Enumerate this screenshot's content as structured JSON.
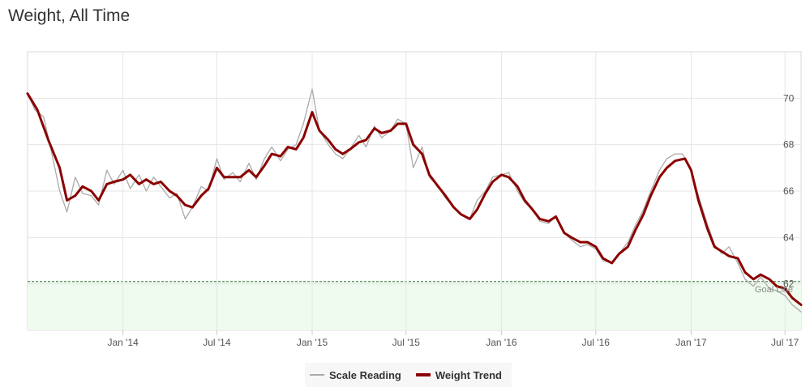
{
  "chart_data": {
    "type": "line",
    "title": "Weight, All Time",
    "xlabel": "",
    "ylabel": "",
    "x_range": [
      "2013-07-01",
      "2017-08-01"
    ],
    "ylim": [
      60.0,
      72.0
    ],
    "y_ticks": [
      62,
      64,
      66,
      68,
      70
    ],
    "x_ticks": [
      {
        "date": "2014-01-01",
        "label": "Jan '14"
      },
      {
        "date": "2014-07-01",
        "label": "Jul '14"
      },
      {
        "date": "2015-01-01",
        "label": "Jan '15"
      },
      {
        "date": "2015-07-01",
        "label": "Jul '15"
      },
      {
        "date": "2016-01-01",
        "label": "Jan '16"
      },
      {
        "date": "2016-07-01",
        "label": "Jul '16"
      },
      {
        "date": "2017-01-01",
        "label": "Jan '17"
      },
      {
        "date": "2017-07-01",
        "label": "Jul '17"
      }
    ],
    "goal": {
      "value": 62.1,
      "label": "Goal Line",
      "color": "#2e7d32",
      "fill": "#eefbee"
    },
    "grid": true,
    "legend_position": "bottom-center",
    "series": [
      {
        "name": "Scale Reading",
        "color": "#aaaaaa",
        "points": [
          [
            "2013-07-01",
            70.2
          ],
          [
            "2013-07-15",
            69.5
          ],
          [
            "2013-08-01",
            69.2
          ],
          [
            "2013-08-15",
            67.8
          ],
          [
            "2013-09-01",
            66.0
          ],
          [
            "2013-09-15",
            65.1
          ],
          [
            "2013-10-01",
            66.6
          ],
          [
            "2013-10-15",
            65.9
          ],
          [
            "2013-11-01",
            65.8
          ],
          [
            "2013-11-15",
            65.4
          ],
          [
            "2013-12-01",
            66.9
          ],
          [
            "2013-12-15",
            66.3
          ],
          [
            "2014-01-01",
            66.9
          ],
          [
            "2014-01-15",
            66.1
          ],
          [
            "2014-02-01",
            66.7
          ],
          [
            "2014-02-15",
            66.0
          ],
          [
            "2014-03-01",
            66.6
          ],
          [
            "2014-03-15",
            66.2
          ],
          [
            "2014-04-01",
            65.7
          ],
          [
            "2014-04-15",
            65.9
          ],
          [
            "2014-05-01",
            64.8
          ],
          [
            "2014-05-15",
            65.3
          ],
          [
            "2014-06-01",
            66.2
          ],
          [
            "2014-06-15",
            66.0
          ],
          [
            "2014-07-01",
            67.4
          ],
          [
            "2014-07-15",
            66.5
          ],
          [
            "2014-08-01",
            66.8
          ],
          [
            "2014-08-15",
            66.4
          ],
          [
            "2014-09-01",
            67.2
          ],
          [
            "2014-09-15",
            66.5
          ],
          [
            "2014-10-01",
            67.4
          ],
          [
            "2014-10-15",
            67.9
          ],
          [
            "2014-11-01",
            67.3
          ],
          [
            "2014-11-15",
            67.8
          ],
          [
            "2014-12-01",
            68.0
          ],
          [
            "2014-12-15",
            68.9
          ],
          [
            "2015-01-01",
            70.4
          ],
          [
            "2015-01-15",
            68.6
          ],
          [
            "2015-02-01",
            68.0
          ],
          [
            "2015-02-15",
            67.6
          ],
          [
            "2015-03-01",
            67.4
          ],
          [
            "2015-03-15",
            67.8
          ],
          [
            "2015-04-01",
            68.4
          ],
          [
            "2015-04-15",
            67.9
          ],
          [
            "2015-05-01",
            68.8
          ],
          [
            "2015-05-15",
            68.3
          ],
          [
            "2015-06-01",
            68.6
          ],
          [
            "2015-06-15",
            69.1
          ],
          [
            "2015-07-01",
            68.9
          ],
          [
            "2015-07-15",
            67.0
          ],
          [
            "2015-08-01",
            67.9
          ],
          [
            "2015-08-15",
            66.6
          ],
          [
            "2015-09-01",
            66.2
          ],
          [
            "2015-09-15",
            65.7
          ],
          [
            "2015-10-01",
            65.3
          ],
          [
            "2015-10-15",
            65.0
          ],
          [
            "2015-11-01",
            64.8
          ],
          [
            "2015-11-15",
            65.6
          ],
          [
            "2015-12-01",
            66.0
          ],
          [
            "2015-12-15",
            66.6
          ],
          [
            "2016-01-01",
            66.7
          ],
          [
            "2016-01-15",
            66.8
          ],
          [
            "2016-02-01",
            66.0
          ],
          [
            "2016-02-15",
            65.5
          ],
          [
            "2016-03-01",
            65.2
          ],
          [
            "2016-03-15",
            64.7
          ],
          [
            "2016-04-01",
            64.6
          ],
          [
            "2016-04-15",
            64.9
          ],
          [
            "2016-05-01",
            64.2
          ],
          [
            "2016-05-15",
            63.9
          ],
          [
            "2016-06-01",
            63.6
          ],
          [
            "2016-06-15",
            63.7
          ],
          [
            "2016-07-01",
            63.5
          ],
          [
            "2016-07-15",
            63.0
          ],
          [
            "2016-08-01",
            62.9
          ],
          [
            "2016-08-15",
            63.3
          ],
          [
            "2016-09-01",
            63.8
          ],
          [
            "2016-09-15",
            64.5
          ],
          [
            "2016-10-01",
            65.2
          ],
          [
            "2016-10-15",
            66.0
          ],
          [
            "2016-11-01",
            66.9
          ],
          [
            "2016-11-15",
            67.4
          ],
          [
            "2016-12-01",
            67.6
          ],
          [
            "2016-12-15",
            67.6
          ],
          [
            "2017-01-01",
            66.9
          ],
          [
            "2017-01-15",
            65.8
          ],
          [
            "2017-02-01",
            64.6
          ],
          [
            "2017-02-15",
            63.7
          ],
          [
            "2017-03-01",
            63.3
          ],
          [
            "2017-03-15",
            63.6
          ],
          [
            "2017-04-01",
            62.9
          ],
          [
            "2017-04-15",
            62.2
          ],
          [
            "2017-05-01",
            61.9
          ],
          [
            "2017-05-15",
            62.3
          ],
          [
            "2017-06-01",
            61.8
          ],
          [
            "2017-06-15",
            61.7
          ],
          [
            "2017-07-01",
            61.5
          ],
          [
            "2017-07-15",
            61.1
          ],
          [
            "2017-08-01",
            60.8
          ]
        ]
      },
      {
        "name": "Weight Trend",
        "color": "#8b0000",
        "points": [
          [
            "2013-07-01",
            70.2
          ],
          [
            "2013-07-20",
            69.5
          ],
          [
            "2013-08-10",
            68.2
          ],
          [
            "2013-09-01",
            67.0
          ],
          [
            "2013-09-15",
            65.6
          ],
          [
            "2013-10-01",
            65.8
          ],
          [
            "2013-10-15",
            66.2
          ],
          [
            "2013-11-01",
            66.0
          ],
          [
            "2013-11-15",
            65.6
          ],
          [
            "2013-12-01",
            66.3
          ],
          [
            "2013-12-15",
            66.4
          ],
          [
            "2014-01-01",
            66.5
          ],
          [
            "2014-01-15",
            66.7
          ],
          [
            "2014-02-01",
            66.3
          ],
          [
            "2014-02-15",
            66.5
          ],
          [
            "2014-03-01",
            66.3
          ],
          [
            "2014-03-15",
            66.4
          ],
          [
            "2014-04-01",
            66.0
          ],
          [
            "2014-04-15",
            65.8
          ],
          [
            "2014-05-01",
            65.4
          ],
          [
            "2014-05-15",
            65.3
          ],
          [
            "2014-06-01",
            65.8
          ],
          [
            "2014-06-15",
            66.1
          ],
          [
            "2014-07-01",
            67.0
          ],
          [
            "2014-07-15",
            66.6
          ],
          [
            "2014-08-01",
            66.6
          ],
          [
            "2014-08-15",
            66.6
          ],
          [
            "2014-09-01",
            66.9
          ],
          [
            "2014-09-15",
            66.6
          ],
          [
            "2014-10-01",
            67.1
          ],
          [
            "2014-10-15",
            67.6
          ],
          [
            "2014-11-01",
            67.5
          ],
          [
            "2014-11-15",
            67.9
          ],
          [
            "2014-12-01",
            67.8
          ],
          [
            "2014-12-15",
            68.3
          ],
          [
            "2015-01-01",
            69.4
          ],
          [
            "2015-01-15",
            68.6
          ],
          [
            "2015-02-01",
            68.2
          ],
          [
            "2015-02-15",
            67.8
          ],
          [
            "2015-03-01",
            67.6
          ],
          [
            "2015-03-15",
            67.8
          ],
          [
            "2015-04-01",
            68.1
          ],
          [
            "2015-04-15",
            68.2
          ],
          [
            "2015-05-01",
            68.7
          ],
          [
            "2015-05-15",
            68.5
          ],
          [
            "2015-06-01",
            68.6
          ],
          [
            "2015-06-15",
            68.9
          ],
          [
            "2015-07-01",
            68.9
          ],
          [
            "2015-07-15",
            68.0
          ],
          [
            "2015-08-01",
            67.6
          ],
          [
            "2015-08-15",
            66.7
          ],
          [
            "2015-09-01",
            66.2
          ],
          [
            "2015-09-15",
            65.8
          ],
          [
            "2015-10-01",
            65.3
          ],
          [
            "2015-10-15",
            65.0
          ],
          [
            "2015-11-01",
            64.8
          ],
          [
            "2015-11-15",
            65.2
          ],
          [
            "2015-12-01",
            65.9
          ],
          [
            "2015-12-15",
            66.4
          ],
          [
            "2016-01-01",
            66.7
          ],
          [
            "2016-01-15",
            66.6
          ],
          [
            "2016-02-01",
            66.2
          ],
          [
            "2016-02-15",
            65.6
          ],
          [
            "2016-03-01",
            65.2
          ],
          [
            "2016-03-15",
            64.8
          ],
          [
            "2016-04-01",
            64.7
          ],
          [
            "2016-04-15",
            64.9
          ],
          [
            "2016-05-01",
            64.2
          ],
          [
            "2016-05-15",
            64.0
          ],
          [
            "2016-06-01",
            63.8
          ],
          [
            "2016-06-15",
            63.8
          ],
          [
            "2016-07-01",
            63.6
          ],
          [
            "2016-07-15",
            63.1
          ],
          [
            "2016-08-01",
            62.9
          ],
          [
            "2016-08-15",
            63.3
          ],
          [
            "2016-09-01",
            63.6
          ],
          [
            "2016-09-15",
            64.3
          ],
          [
            "2016-10-01",
            65.0
          ],
          [
            "2016-10-15",
            65.8
          ],
          [
            "2016-11-01",
            66.6
          ],
          [
            "2016-11-15",
            67.0
          ],
          [
            "2016-12-01",
            67.3
          ],
          [
            "2016-12-20",
            67.4
          ],
          [
            "2017-01-01",
            66.9
          ],
          [
            "2017-01-15",
            65.6
          ],
          [
            "2017-02-01",
            64.4
          ],
          [
            "2017-02-15",
            63.6
          ],
          [
            "2017-03-01",
            63.4
          ],
          [
            "2017-03-15",
            63.2
          ],
          [
            "2017-04-01",
            63.1
          ],
          [
            "2017-04-15",
            62.5
          ],
          [
            "2017-05-01",
            62.2
          ],
          [
            "2017-05-15",
            62.4
          ],
          [
            "2017-06-01",
            62.2
          ],
          [
            "2017-06-15",
            61.9
          ],
          [
            "2017-07-01",
            61.8
          ],
          [
            "2017-07-15",
            61.4
          ],
          [
            "2017-08-01",
            61.1
          ]
        ]
      }
    ]
  }
}
